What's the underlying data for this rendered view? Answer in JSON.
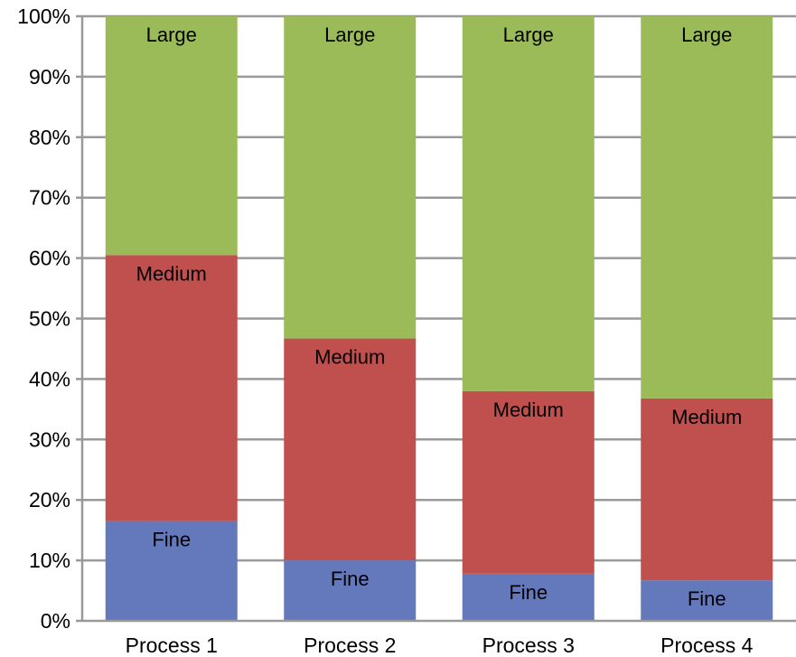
{
  "chart_data": {
    "type": "bar",
    "stacked": true,
    "percent": true,
    "categories": [
      "Process 1",
      "Process 2",
      "Process 3",
      "Process 4"
    ],
    "series": [
      {
        "name": "Fine",
        "color": "#6479BC",
        "values": [
          16.5,
          10.0,
          7.8,
          6.7
        ]
      },
      {
        "name": "Medium",
        "color": "#C0504D",
        "values": [
          44.0,
          36.7,
          30.2,
          30.1
        ]
      },
      {
        "name": "Large",
        "color": "#9BBB59",
        "values": [
          39.5,
          53.3,
          62.0,
          63.2
        ]
      }
    ],
    "yticks": [
      "0%",
      "10%",
      "20%",
      "30%",
      "40%",
      "50%",
      "60%",
      "70%",
      "80%",
      "90%",
      "100%"
    ],
    "ylim": [
      0,
      100
    ],
    "grid": true,
    "legend": "none",
    "title": "",
    "xlabel": "",
    "ylabel": ""
  }
}
